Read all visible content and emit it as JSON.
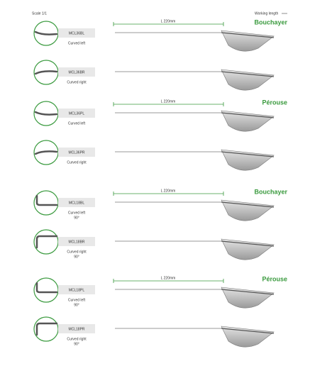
{
  "header": {
    "scale": "Scale 1/1",
    "working_length": "Working length"
  },
  "groups": [
    {
      "brand": "Bouchayer",
      "length": "L 220mm",
      "items": [
        {
          "code": "MCL36BL",
          "description": "Curved left"
        },
        {
          "code": "MCL36BR",
          "description": "Curved right"
        }
      ]
    },
    {
      "brand": "Pérouse",
      "length": "L 220mm",
      "items": [
        {
          "code": "MCL36PL",
          "description": "Curved left"
        },
        {
          "code": "MCL36PR",
          "description": "Curved right"
        }
      ]
    },
    {
      "brand": "Bouchayer",
      "length": "L 220mm",
      "items": [
        {
          "code": "MCL18BL",
          "description": "Curved left",
          "note": "90°"
        },
        {
          "code": "MCL18BR",
          "description": "Curved right",
          "note": "90°"
        }
      ]
    },
    {
      "brand": "Pérouse",
      "length": "L 220mm",
      "items": [
        {
          "code": "MCL18PL",
          "description": "Curved left",
          "note": "90°"
        },
        {
          "code": "MCL18PR",
          "description": "Curved right",
          "note": "90°"
        }
      ]
    }
  ]
}
